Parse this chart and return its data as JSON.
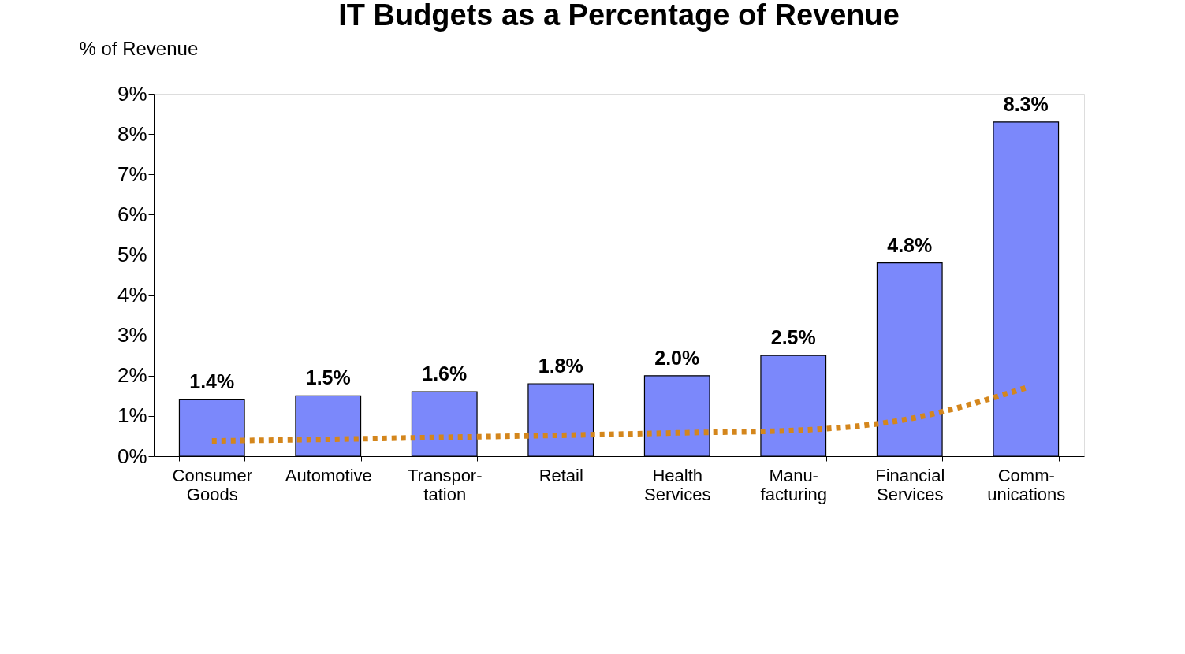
{
  "chart_data": {
    "type": "bar",
    "title": "IT Budgets as a Percentage of Revenue",
    "ylabel": "% of Revenue",
    "categories": [
      "Consumer\nGoods",
      "Automotive",
      "Transpor-\ntation",
      "Retail",
      "Health\nServices",
      "Manu-\nfacturing",
      "Financial\nServices",
      "Comm-\nunications"
    ],
    "series": [
      {
        "color": "#7b88fb",
        "values": [
          1.4,
          1.5,
          1.6,
          1.8,
          2.0,
          2.5,
          4.8,
          8.3
        ],
        "value_labels": [
          "1.4%",
          "1.5%",
          "1.6%",
          "1.8%",
          "2.0%",
          "2.5%",
          "4.8%",
          "8.3%"
        ]
      },
      {
        "type": "line",
        "color": "#d4861c",
        "line_style": "dotted",
        "values": [
          0.38,
          0.42,
          0.47,
          0.52,
          0.58,
          0.64,
          0.93,
          1.7
        ]
      }
    ],
    "ylim": [
      0,
      9
    ],
    "yticks": [
      {
        "value": 0,
        "label": "0%"
      },
      {
        "value": 1,
        "label": "1%"
      },
      {
        "value": 2,
        "label": "2%"
      },
      {
        "value": 3,
        "label": "3%"
      },
      {
        "value": 4,
        "label": "4%"
      },
      {
        "value": 5,
        "label": "5%"
      },
      {
        "value": 6,
        "label": "6%"
      },
      {
        "value": 7,
        "label": "7%"
      },
      {
        "value": 8,
        "label": "8%"
      },
      {
        "value": 9,
        "label": "9%"
      }
    ],
    "grid": false
  }
}
